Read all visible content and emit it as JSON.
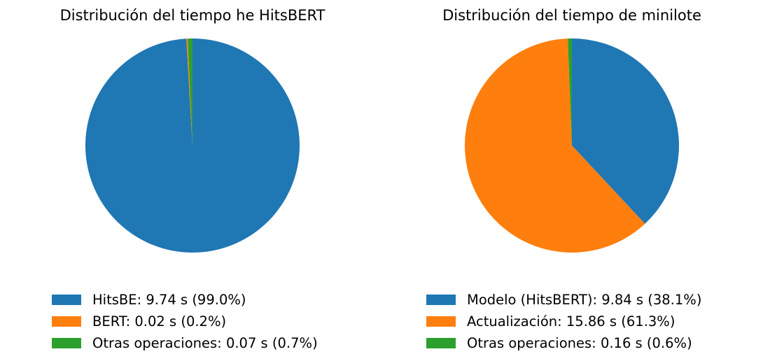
{
  "chart_data": [
    {
      "type": "pie",
      "title": "Distribución del tiempo he HitsBERT",
      "slices": [
        {
          "label": "HitsBE",
          "value": 9.74,
          "legend": "HitsBE: 9.74 s (99.0%)",
          "color": "#1f77b4"
        },
        {
          "label": "BERT",
          "value": 0.02,
          "legend": "BERT: 0.02 s (0.2%)",
          "color": "#ff7f0e"
        },
        {
          "label": "Otras operaciones",
          "value": 0.07,
          "legend": "Otras operaciones: 0.07 s (0.7%)",
          "color": "#2ca02c"
        }
      ],
      "start_angle_deg": 90,
      "direction": "clockwise",
      "legend_position": "bottom"
    },
    {
      "type": "pie",
      "title": "Distribución del tiempo de minilote",
      "slices": [
        {
          "label": "Modelo (HitsBERT)",
          "value": 9.84,
          "legend": "Modelo (HitsBERT): 9.84 s (38.1%)",
          "color": "#1f77b4"
        },
        {
          "label": "Actualización",
          "value": 15.86,
          "legend": "Actualización: 15.86 s (61.3%)",
          "color": "#ff7f0e"
        },
        {
          "label": "Otras operaciones",
          "value": 0.16,
          "legend": "Otras operaciones: 0.16 s (0.6%)",
          "color": "#2ca02c"
        }
      ],
      "start_angle_deg": 90,
      "direction": "clockwise",
      "legend_position": "bottom"
    }
  ]
}
